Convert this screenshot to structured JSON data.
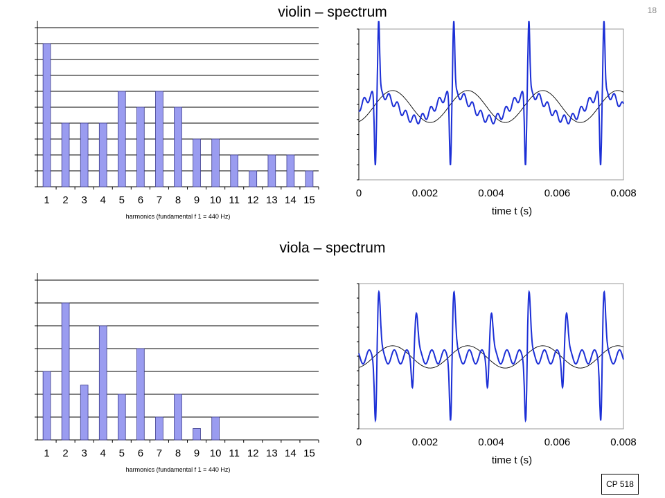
{
  "page": {
    "title_violin": "violin – spectrum",
    "title_viola": "viola – spectrum",
    "page_number": "18",
    "stamp": "CP 518"
  },
  "colors": {
    "bar_fill": "#9a9cf0",
    "bar_stroke": "#3a3a8c",
    "wave": "#1c2fd6",
    "sine": "#000000"
  },
  "chart_data": [
    {
      "id": "violin_spectrum",
      "type": "bar",
      "categories": [
        "1",
        "2",
        "3",
        "4",
        "5",
        "6",
        "7",
        "8",
        "9",
        "10",
        "11",
        "12",
        "13",
        "14",
        "15"
      ],
      "values": [
        9,
        4,
        4,
        4,
        6,
        5,
        6,
        5,
        3,
        3,
        2,
        1,
        2,
        2,
        1
      ],
      "ylim": [
        0,
        10
      ],
      "grid": true,
      "xlabel": "harmonics (fundamental  f 1 = 440 Hz)"
    },
    {
      "id": "violin_waveform",
      "type": "line",
      "xlim": [
        0,
        0.008
      ],
      "xticks": [
        "0",
        "0.002",
        "0.004",
        "0.006",
        "0.008"
      ],
      "xlabel": "time t (s)",
      "ylim": [
        -1,
        1
      ],
      "period": 0.00227,
      "grid": false
    },
    {
      "id": "viola_spectrum",
      "type": "bar",
      "categories": [
        "1",
        "2",
        "3",
        "4",
        "5",
        "6",
        "7",
        "8",
        "9",
        "10",
        "11",
        "12",
        "13",
        "14",
        "15"
      ],
      "values": [
        3,
        6,
        2.4,
        5,
        2,
        4,
        1,
        2,
        0.5,
        1,
        0,
        0,
        0,
        0,
        0
      ],
      "ylim": [
        0,
        7
      ],
      "grid": true,
      "xlabel": "harmonics (fundamental  f 1 = 440 Hz)"
    },
    {
      "id": "viola_waveform",
      "type": "line",
      "xlim": [
        0,
        0.008
      ],
      "xticks": [
        "0",
        "0.002",
        "0.004",
        "0.006",
        "0.008"
      ],
      "xlabel": "time t (s)",
      "ylim": [
        -1,
        1
      ],
      "period": 0.00227,
      "grid": false
    }
  ]
}
